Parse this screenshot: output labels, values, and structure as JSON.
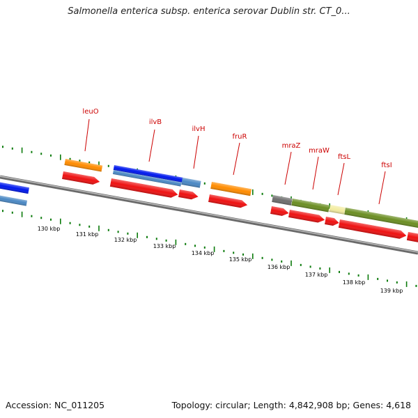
{
  "title": "Salmonella enterica subsp. enterica serovar Dublin str. CT_0...",
  "footer": {
    "accession": "Accession: NC_011205",
    "summary": "Topology: circular; Length: 4,842,908 bp; Genes: 4,618"
  },
  "colors": {
    "cds": "#ee1111",
    "gene_orange": "#ff8c00",
    "gene_blue": "#0018ee",
    "gene_steel": "#4a88c4",
    "gene_olive": "#6b8e23",
    "gene_gray": "#6e6e6e",
    "gene_pale": "#f3eca0",
    "label": "#cc0000",
    "ticks": "#0a7a0a",
    "backbone": "#888888"
  },
  "chart_data": {
    "type": "genome_map",
    "axis_labels": [
      "130 kbp",
      "131 kbp",
      "132 kbp",
      "133 kbp",
      "134 kbp",
      "135 kbp",
      "136 kbp",
      "137 kbp",
      "138 kbp",
      "139 kbp"
    ],
    "gene_labels": [
      "leuO",
      "ilvB",
      "ilvH",
      "fruR",
      "mraZ",
      "mraW",
      "ftsL",
      "ftsI"
    ]
  }
}
